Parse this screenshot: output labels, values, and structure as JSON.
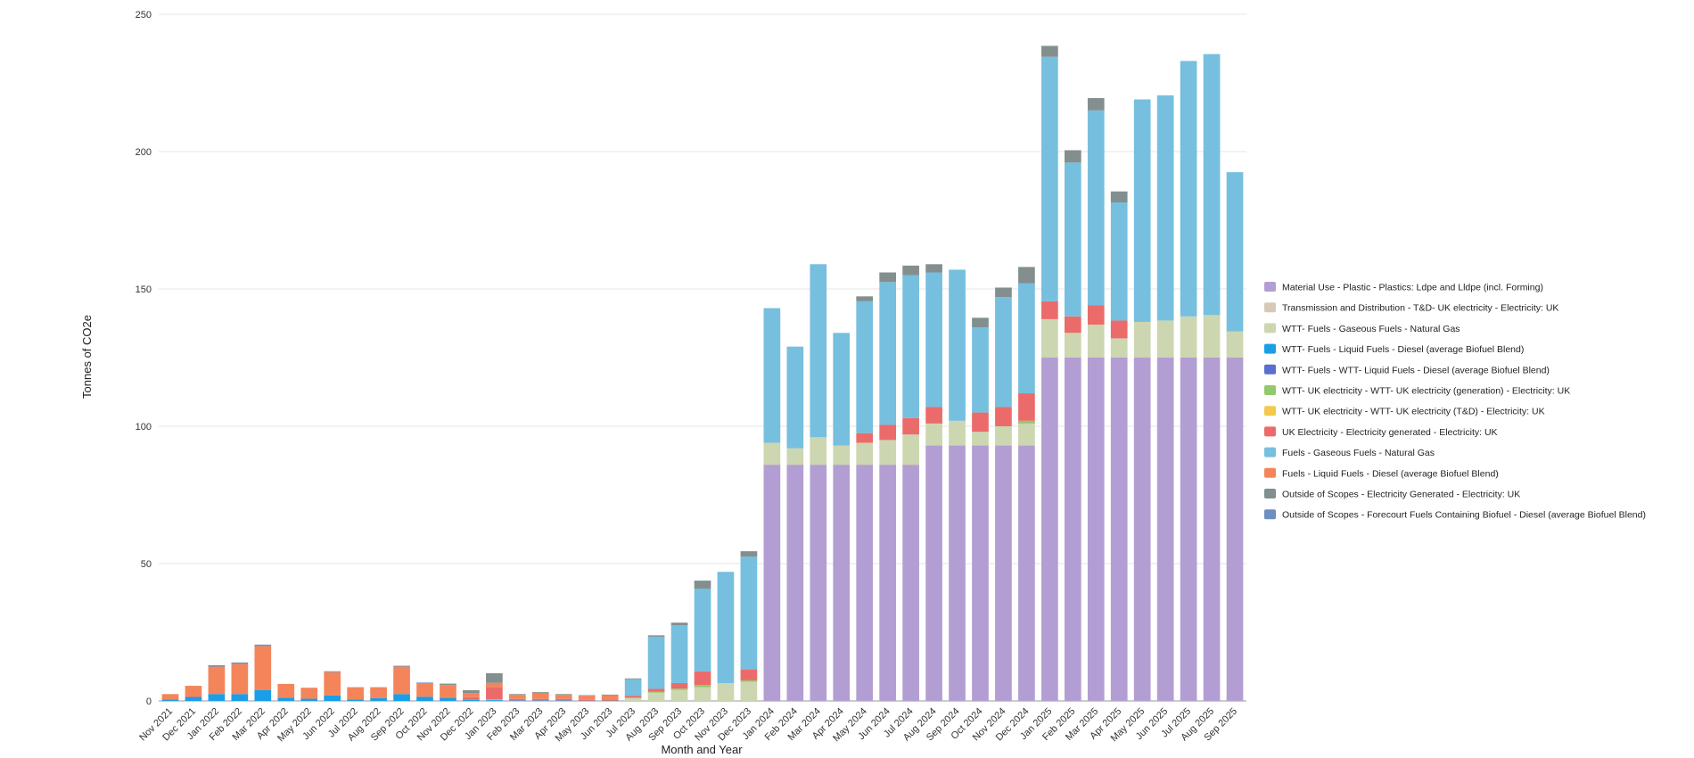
{
  "chart_data": {
    "type": "bar",
    "stacked": true,
    "xlabel": "Month and Year",
    "ylabel": "Tonnes of CO2e",
    "ylim": [
      0,
      250
    ],
    "yticks": [
      0,
      50,
      100,
      150,
      200,
      250
    ],
    "grid": true,
    "legend_position": "right",
    "categories": [
      "Nov 2021",
      "Dec 2021",
      "Jan 2022",
      "Feb 2022",
      "Mar 2022",
      "Apr 2022",
      "May 2022",
      "Jun 2022",
      "Jul 2022",
      "Aug 2022",
      "Sep 2022",
      "Oct 2022",
      "Nov 2022",
      "Dec 2022",
      "Jan 2023",
      "Feb 2023",
      "Mar 2023",
      "Apr 2023",
      "May 2023",
      "Jun 2023",
      "Jul 2023",
      "Aug 2023",
      "Sep 2023",
      "Oct 2023",
      "Nov 2023",
      "Dec 2023",
      "Jan 2024",
      "Feb 2024",
      "Mar 2024",
      "Apr 2024",
      "May 2024",
      "Jun 2024",
      "Jul 2024",
      "Aug 2024",
      "Sep 2024",
      "Oct 2024",
      "Nov 2024",
      "Dec 2024",
      "Jan 2025",
      "Feb 2025",
      "Mar 2025",
      "Apr 2025",
      "May 2025",
      "Jun 2025",
      "Jul 2025",
      "Aug 2025",
      "Sep 2025"
    ],
    "series": [
      {
        "name": "Material Use - Plastic - Plastics: Ldpe and Lldpe (incl. Forming)",
        "color": "#b39ed3",
        "values": [
          0,
          0,
          0,
          0,
          0,
          0,
          0,
          0,
          0,
          0,
          0,
          0,
          0,
          0,
          0,
          0,
          0,
          0,
          0,
          0,
          0,
          0,
          0,
          0,
          0,
          0,
          86,
          86,
          86,
          86,
          86,
          86,
          86,
          93,
          93,
          93,
          93,
          93,
          125,
          125,
          125,
          125,
          125,
          125,
          125,
          125,
          125
        ]
      },
      {
        "name": "Transmission and Distribution - T&D- UK electricity - Electricity: UK",
        "color": "#d6c9b6",
        "values": [
          0,
          0,
          0,
          0,
          0,
          0,
          0,
          0,
          0,
          0,
          0,
          0,
          0,
          0,
          0,
          0,
          0,
          0,
          0,
          0,
          0,
          0,
          0,
          0,
          0,
          0,
          0,
          0,
          0,
          0,
          0,
          0,
          0,
          0,
          0,
          0,
          0,
          0,
          0,
          0,
          0,
          0,
          0,
          0,
          0,
          0,
          0
        ]
      },
      {
        "name": "WTT- Fuels - Gaseous Fuels - Natural Gas",
        "color": "#ccd6b0",
        "values": [
          0,
          0,
          0,
          0,
          0,
          0,
          0,
          0,
          0,
          0,
          0,
          0,
          0,
          0,
          0,
          0,
          0,
          0,
          0,
          0,
          1,
          3,
          4,
          5,
          6.5,
          7,
          8,
          6,
          10,
          7,
          8,
          9,
          11,
          8,
          9,
          5,
          7,
          8,
          14,
          9,
          12,
          7,
          13,
          13.5,
          15,
          15.5,
          9.5
        ]
      },
      {
        "name": "WTT- Fuels - Liquid Fuels - Diesel (average Biofuel Blend)",
        "color": "#1a9ee8",
        "values": [
          0.5,
          1,
          2.5,
          2.5,
          4,
          1.2,
          0.8,
          2,
          0.5,
          1,
          2.5,
          1.5,
          1,
          0.4,
          0.3,
          0.2,
          0.2,
          0.2,
          0.1,
          0.1,
          0,
          0,
          0,
          0,
          0,
          0,
          0,
          0,
          0,
          0,
          0,
          0,
          0,
          0,
          0,
          0,
          0,
          0,
          0,
          0,
          0,
          0,
          0,
          0,
          0,
          0,
          0
        ]
      },
      {
        "name": "WTT- Fuels - WTT- Liquid Fuels - Diesel (average Biofuel Blend)",
        "color": "#5b6fd0",
        "values": [
          0,
          0.5,
          0,
          0,
          0,
          0,
          0,
          0,
          0,
          0,
          0,
          0,
          0,
          0,
          0,
          0,
          0,
          0,
          0,
          0,
          0,
          0,
          0,
          0,
          0,
          0,
          0,
          0,
          0,
          0,
          0,
          0,
          0,
          0,
          0,
          0,
          0,
          0,
          0,
          0,
          0,
          0,
          0,
          0,
          0,
          0,
          0
        ]
      },
      {
        "name": "WTT- UK electricity - WTT- UK electricity (generation) - Electricity: UK",
        "color": "#92c96a",
        "values": [
          0,
          0,
          0,
          0,
          0,
          0,
          0,
          0,
          0,
          0,
          0,
          0,
          0,
          0,
          0.3,
          0,
          0,
          0,
          0,
          0,
          0.3,
          0.4,
          0.5,
          0.8,
          0,
          0.5,
          0,
          0,
          0,
          0,
          0,
          0,
          0,
          0,
          0,
          0,
          0,
          1,
          0,
          0,
          0,
          0,
          0,
          0,
          0,
          0,
          0
        ]
      },
      {
        "name": "WTT- UK electricity - WTT- UK electricity (T&D) - Electricity: UK",
        "color": "#f2c94c",
        "values": [
          0,
          0,
          0,
          0,
          0,
          0,
          0,
          0,
          0,
          0,
          0,
          0,
          0,
          0,
          0,
          0,
          0,
          0,
          0,
          0,
          0,
          0,
          0,
          0,
          0,
          0,
          0,
          0,
          0,
          0,
          0,
          0,
          0,
          0,
          0,
          0,
          0,
          0,
          0,
          0,
          0,
          0,
          0,
          0,
          0,
          0,
          0
        ]
      },
      {
        "name": "UK Electricity - Electricity generated - Electricity: UK",
        "color": "#eb6b6b",
        "values": [
          0,
          0,
          0,
          0,
          0,
          0,
          0,
          0,
          0,
          0,
          0,
          0,
          0.3,
          1,
          4.5,
          0.5,
          0.5,
          0.5,
          0.3,
          0.5,
          0.6,
          1,
          2,
          5,
          0,
          4,
          0,
          0,
          0,
          0,
          3.5,
          5.5,
          6,
          6,
          0,
          7,
          7,
          10,
          6.5,
          6,
          7,
          6.5,
          0,
          0,
          0,
          0,
          0
        ]
      },
      {
        "name": "Fuels - Gaseous Fuels - Natural Gas",
        "color": "#76bfdf",
        "values": [
          0,
          0,
          0,
          0,
          0,
          0,
          0,
          0,
          0,
          0,
          0,
          0,
          0,
          0,
          0,
          0,
          0,
          0,
          0,
          0,
          6,
          19,
          21,
          30,
          40.5,
          41,
          49,
          37,
          63,
          41,
          48,
          52,
          52,
          49,
          55,
          31,
          40,
          40,
          89,
          56,
          71,
          43,
          81,
          82,
          93,
          95,
          58
        ]
      },
      {
        "name": "Fuels - Liquid Fuels - Diesel (average Biofuel Blend)",
        "color": "#f4855a",
        "values": [
          2,
          4,
          10,
          11,
          16,
          5,
          4,
          8.5,
          4.5,
          4,
          10,
          5,
          4.5,
          1.5,
          1.5,
          1.5,
          2,
          1.5,
          1.5,
          1.5,
          0,
          0,
          0,
          0,
          0,
          0,
          0,
          0,
          0,
          0,
          0,
          0,
          0,
          0,
          0,
          0,
          0,
          0,
          0,
          0,
          0,
          0,
          0,
          0,
          0,
          0,
          0
        ]
      },
      {
        "name": "Outside of Scopes - Electricity Generated - Electricity: UK",
        "color": "#838f8f",
        "values": [
          0,
          0,
          0,
          0,
          0,
          0,
          0,
          0,
          0,
          0,
          0,
          0,
          0.5,
          1,
          3.5,
          0.3,
          0.5,
          0.3,
          0.2,
          0.2,
          0.3,
          0.5,
          1,
          3,
          0,
          2,
          0,
          0,
          0,
          0,
          1.8,
          3.5,
          3.5,
          3,
          0,
          3.5,
          3.5,
          6,
          4,
          4.5,
          4.5,
          4,
          0,
          0,
          0,
          0,
          0
        ]
      },
      {
        "name": "Outside of Scopes - Forecourt Fuels Containing Biofuel - Diesel (average Biofuel Blend)",
        "color": "#6d8fbf",
        "values": [
          0,
          0,
          0.5,
          0.5,
          0.5,
          0,
          0,
          0.3,
          0,
          0,
          0.3,
          0.2,
          0,
          0,
          0,
          0,
          0,
          0,
          0,
          0,
          0,
          0,
          0,
          0,
          0,
          0,
          0,
          0,
          0,
          0,
          0,
          0,
          0,
          0,
          0,
          0,
          0,
          0,
          0,
          0,
          0,
          0,
          0,
          0,
          0,
          0,
          0
        ]
      }
    ]
  }
}
